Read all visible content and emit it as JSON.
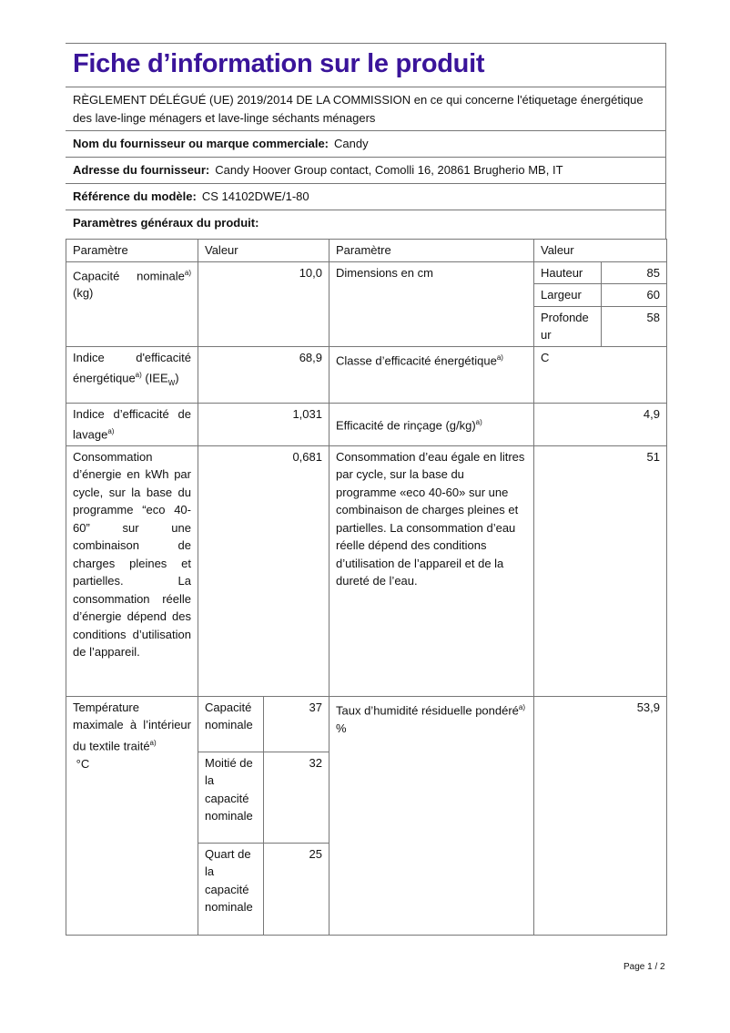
{
  "title": "Fiche d’information sur le produit",
  "regulation": "RÈGLEMENT DÉLÉGUÉ (UE) 2019/2014 DE LA COMMISSION en ce qui concerne l'étiquetage énergétique des lave-linge ménagers et lave-linge séchants ménagers",
  "supplier": {
    "label": "Nom du fournisseur ou marque commerciale:",
    "value": "Candy"
  },
  "address": {
    "label": "Adresse du fournisseur:",
    "value": "Candy Hoover Group contact, Comolli 16, 20861 Brugherio MB, IT"
  },
  "model": {
    "label": "Référence du modèle:",
    "value": "CS 14102DWE/1-80"
  },
  "params_heading": "Paramètres généraux du produit:",
  "table": {
    "h_param": "Paramètre",
    "h_value": "Valeur",
    "h_param2": "Paramètre",
    "h_value2": "Valeur",
    "capacity": {
      "label": "Capacité nominale",
      "sup": "a)",
      "unit": "(kg)",
      "value": "10,0"
    },
    "dimensions": {
      "label": "Dimensions en cm",
      "height_label": "Hauteur",
      "height": "85",
      "width_label": "Largeur",
      "width": "60",
      "depth_label": "Profondeur",
      "depth": "58"
    },
    "eei": {
      "label": "Indice d'efficacité énergétique",
      "sup": "a)",
      "unit": "(IEE",
      "unit_sub": "W",
      "unit_close": ")",
      "value": "68,9"
    },
    "energy_class": {
      "label": "Classe d’efficacité énergétique",
      "sup": "a)",
      "value": "C"
    },
    "washing": {
      "label": "Indice d’efficacité de lavage",
      "sup": "a)",
      "value": "1,031"
    },
    "rinsing": {
      "label": "Efficacité de rinçage (g/kg)",
      "sup": "a)",
      "value": "4,9"
    },
    "energy_consumption": {
      "label": "Consommation d’énergie en kWh par cycle, sur la base du programme “eco 40-60” sur une combinaison de charges pleines et partielles. La consommation réelle d’énergie dépend des conditions d’utilisation de l’appareil.",
      "value": "0,681"
    },
    "water_consumption": {
      "label": "Consommation d’eau égale en litres par cycle, sur la base du programme «eco 40-60» sur une combinaison de charges pleines et partielles. La consommation d’eau réelle dépend des conditions d’utilisation de l’appareil et de la dureté de l’eau.",
      "value": "51"
    },
    "temperature": {
      "label": "Température maximale à l’intérieur du textile traité",
      "sup": "a)",
      "unit": "°C",
      "rows": [
        {
          "label": "Capacité nominale",
          "value": "37"
        },
        {
          "label": "Moitié de la capacité nominale",
          "value": "32"
        },
        {
          "label": "Quart de la capacité nominale",
          "value": "25"
        }
      ]
    },
    "moisture": {
      "label": "Taux d’humidité résiduelle pondéré",
      "sup": "a)",
      "unit": "%",
      "value": "53,9"
    }
  },
  "footer": "Page 1 / 2"
}
